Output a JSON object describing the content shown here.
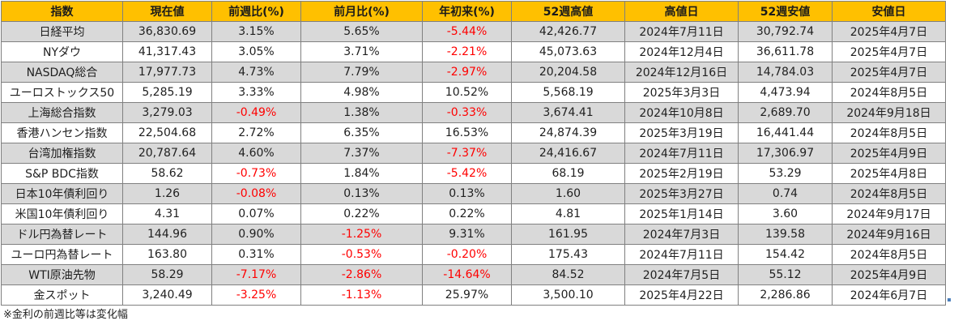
{
  "colors": {
    "header_bg": "#ffc000",
    "band_gray": "#d9d9d9",
    "negative": "#ff0000"
  },
  "columns": [
    "指数",
    "現在値",
    "前週比(%)",
    "前月比(%)",
    "年初来(%)",
    "52週高値",
    "高値日",
    "52週安値",
    "安値日"
  ],
  "rows": [
    [
      "日経平均",
      "36,830.69",
      "3.15%",
      "5.65%",
      "-5.44%",
      "42,426.77",
      "2024年7月11日",
      "30,792.74",
      "2025年4月7日"
    ],
    [
      "NYダウ",
      "41,317.43",
      "3.05%",
      "3.71%",
      "-2.21%",
      "45,073.63",
      "2024年12月4日",
      "36,611.78",
      "2025年4月7日"
    ],
    [
      "NASDAQ総合",
      "17,977.73",
      "4.73%",
      "7.79%",
      "-2.97%",
      "20,204.58",
      "2024年12月16日",
      "14,784.03",
      "2025年4月7日"
    ],
    [
      "ユーロストックス50",
      "5,285.19",
      "3.33%",
      "4.98%",
      "10.52%",
      "5,568.19",
      "2025年3月3日",
      "4,473.94",
      "2024年8月5日"
    ],
    [
      "上海総合指数",
      "3,279.03",
      "-0.49%",
      "1.38%",
      "-0.33%",
      "3,674.41",
      "2024年10月8日",
      "2,689.70",
      "2024年9月18日"
    ],
    [
      "香港ハンセン指数",
      "22,504.68",
      "2.72%",
      "6.35%",
      "16.53%",
      "24,874.39",
      "2025年3月19日",
      "16,441.44",
      "2024年8月5日"
    ],
    [
      "台湾加権指数",
      "20,787.64",
      "4.60%",
      "7.37%",
      "-7.37%",
      "24,416.67",
      "2024年7月11日",
      "17,306.97",
      "2025年4月9日"
    ],
    [
      "S&P BDC指数",
      "58.62",
      "-0.73%",
      "1.84%",
      "-5.42%",
      "68.19",
      "2025年2月19日",
      "53.29",
      "2025年4月8日"
    ],
    [
      "日本10年債利回り",
      "1.26",
      "-0.08%",
      "0.13%",
      "0.13%",
      "1.60",
      "2025年3月27日",
      "0.74",
      "2024年8月5日"
    ],
    [
      "米国10年債利回り",
      "4.31",
      "0.07%",
      "0.22%",
      "0.22%",
      "4.81",
      "2025年1月14日",
      "3.60",
      "2024年9月17日"
    ],
    [
      "ドル円為替レート",
      "144.96",
      "0.90%",
      "-1.25%",
      "9.31%",
      "161.95",
      "2024年7月3日",
      "139.58",
      "2024年9月16日"
    ],
    [
      "ユーロ円為替レート",
      "163.80",
      "0.31%",
      "-0.53%",
      "-0.20%",
      "175.43",
      "2024年7月11日",
      "154.42",
      "2024年8月5日"
    ],
    [
      "WTI原油先物",
      "58.29",
      "-7.17%",
      "-2.86%",
      "-14.64%",
      "84.52",
      "2024年7月5日",
      "55.12",
      "2025年4月9日"
    ],
    [
      "金スポット",
      "3,240.49",
      "-3.25%",
      "-1.13%",
      "25.97%",
      "3,500.10",
      "2025年4月22日",
      "2,286.86",
      "2024年6月7日"
    ]
  ],
  "footnote": "※金利の前週比等は変化幅"
}
